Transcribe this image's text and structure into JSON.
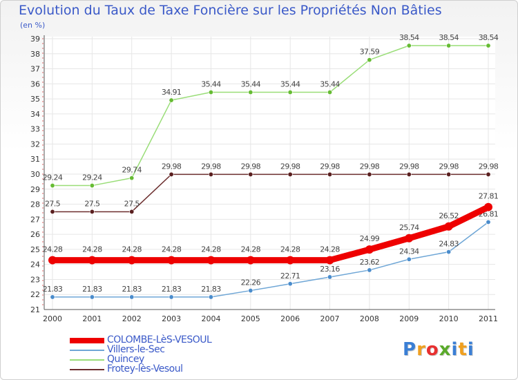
{
  "chart_data": {
    "type": "line",
    "title": "Evolution du Taux de Taxe Foncière sur les Propriétés Non Bâties",
    "unit_label": "(en %)",
    "x": [
      "2000",
      "2001",
      "2002",
      "2003",
      "2004",
      "2005",
      "2006",
      "2007",
      "2008",
      "2009",
      "2010",
      "2011"
    ],
    "ylim": [
      21,
      39
    ],
    "yticks": [
      "21",
      "22",
      "23",
      "24",
      "25",
      "26",
      "27",
      "28",
      "29",
      "30",
      "31",
      "32",
      "33",
      "34",
      "35",
      "36",
      "37",
      "38",
      "39"
    ],
    "grid": true,
    "legend_position": "bottom-left",
    "series": [
      {
        "name": "Quincey",
        "color": "#99dd77",
        "marker": "#66bb33",
        "width": 1.5,
        "values": [
          29.24,
          29.24,
          29.74,
          34.91,
          35.44,
          35.44,
          35.44,
          35.44,
          37.59,
          38.54,
          38.54,
          38.54
        ],
        "labels": [
          "29.24",
          "29.24",
          "29.74",
          "34.91",
          "35.44",
          "35.44",
          "35.44",
          "35.44",
          "37.59",
          "38.54",
          "38.54",
          "38.54"
        ]
      },
      {
        "name": "Frotey-lès-Vesoul",
        "color": "#6b2d2d",
        "marker": "#5a1f1f",
        "width": 1.5,
        "values": [
          27.5,
          27.5,
          27.5,
          29.98,
          29.98,
          29.98,
          29.98,
          29.98,
          29.98,
          29.98,
          29.98,
          29.98
        ],
        "labels": [
          "27.5",
          "27.5",
          "27.5",
          "29.98",
          "29.98",
          "29.98",
          "29.98",
          "29.98",
          "29.98",
          "29.98",
          "29.98",
          "29.98"
        ]
      },
      {
        "name": "Villers-le-Sec",
        "color": "#6ea6d6",
        "marker": "#4a8ccc",
        "width": 1.5,
        "values": [
          21.83,
          21.83,
          21.83,
          21.83,
          21.83,
          22.26,
          22.71,
          23.16,
          23.62,
          24.34,
          24.83,
          26.81
        ],
        "labels": [
          "21.83",
          "21.83",
          "21.83",
          "21.83",
          "21.83",
          "22.26",
          "22.71",
          "23.16",
          "23.62",
          "24.34",
          "24.83",
          "26.81"
        ]
      },
      {
        "name": "COLOMBE-LèS-VESOUL",
        "color": "#ee0000",
        "marker": "#ee0000",
        "width": 9,
        "values": [
          24.28,
          24.28,
          24.28,
          24.28,
          24.28,
          24.28,
          24.28,
          24.28,
          24.99,
          25.74,
          26.52,
          27.81
        ],
        "labels": [
          "24.28",
          "24.28",
          "24.28",
          "24.28",
          "24.28",
          "24.28",
          "24.28",
          "24.28",
          "24.99",
          "25.74",
          "26.52",
          "27.81"
        ]
      }
    ],
    "legend_order": [
      "COLOMBE-LèS-VESOUL",
      "Villers-le-Sec",
      "Quincey",
      "Frotey-lès-Vesoul"
    ]
  },
  "brand": {
    "letters": [
      "P",
      "r",
      "o",
      "x",
      "i",
      "t",
      "i"
    ],
    "colors": [
      "#3a7fd5",
      "#f0a020",
      "#e83030",
      "#5aaa2a",
      "#3a7fd5",
      "#f0a020",
      "#3a7fd5"
    ]
  }
}
